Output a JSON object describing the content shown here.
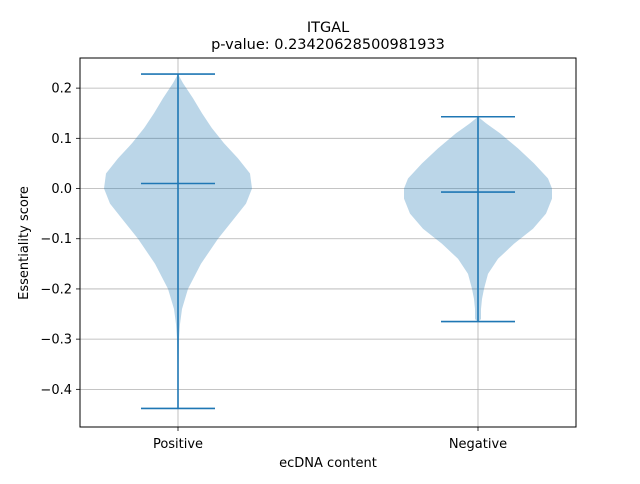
{
  "chart_data": {
    "type": "violin",
    "title": "ITGAL",
    "subtitle": "p-value: 0.23420628500981933",
    "xlabel": "ecDNA content",
    "ylabel": "Essentiality score",
    "categories": [
      "Positive",
      "Negative"
    ],
    "ylim": [
      -0.475,
      0.26
    ],
    "yticks": [
      -0.4,
      -0.3,
      -0.2,
      -0.1,
      0.0,
      0.1,
      0.2
    ],
    "ytick_labels": [
      "−0.4",
      "−0.3",
      "−0.2",
      "−0.1",
      "0.0",
      "0.1",
      "0.2"
    ],
    "grid": true,
    "colors": {
      "violin": "#1f77b4",
      "grid": "#b0b0b0"
    },
    "series": [
      {
        "category": "Positive",
        "min": -0.438,
        "median": 0.01,
        "max": 0.228,
        "density": [
          [
            -0.438,
            0.0
          ],
          [
            -0.42,
            0.005
          ],
          [
            -0.4,
            0.005
          ],
          [
            -0.35,
            0.005
          ],
          [
            -0.3,
            0.01
          ],
          [
            -0.27,
            0.02
          ],
          [
            -0.24,
            0.04
          ],
          [
            -0.2,
            0.1
          ],
          [
            -0.15,
            0.23
          ],
          [
            -0.1,
            0.4
          ],
          [
            -0.06,
            0.56
          ],
          [
            -0.03,
            0.68
          ],
          [
            0.0,
            0.74
          ],
          [
            0.03,
            0.72
          ],
          [
            0.06,
            0.6
          ],
          [
            0.09,
            0.46
          ],
          [
            0.12,
            0.34
          ],
          [
            0.15,
            0.24
          ],
          [
            0.18,
            0.15
          ],
          [
            0.21,
            0.05
          ],
          [
            0.228,
            0.0
          ]
        ]
      },
      {
        "category": "Negative",
        "min": -0.265,
        "median": -0.007,
        "max": 0.143,
        "density": [
          [
            -0.265,
            0.0
          ],
          [
            -0.26,
            0.03
          ],
          [
            -0.24,
            0.03
          ],
          [
            -0.22,
            0.04
          ],
          [
            -0.2,
            0.06
          ],
          [
            -0.17,
            0.1
          ],
          [
            -0.14,
            0.2
          ],
          [
            -0.11,
            0.36
          ],
          [
            -0.08,
            0.55
          ],
          [
            -0.05,
            0.68
          ],
          [
            -0.02,
            0.74
          ],
          [
            0.0,
            0.74
          ],
          [
            0.02,
            0.7
          ],
          [
            0.05,
            0.56
          ],
          [
            0.08,
            0.4
          ],
          [
            0.11,
            0.22
          ],
          [
            0.13,
            0.08
          ],
          [
            0.143,
            0.0
          ]
        ]
      }
    ]
  }
}
